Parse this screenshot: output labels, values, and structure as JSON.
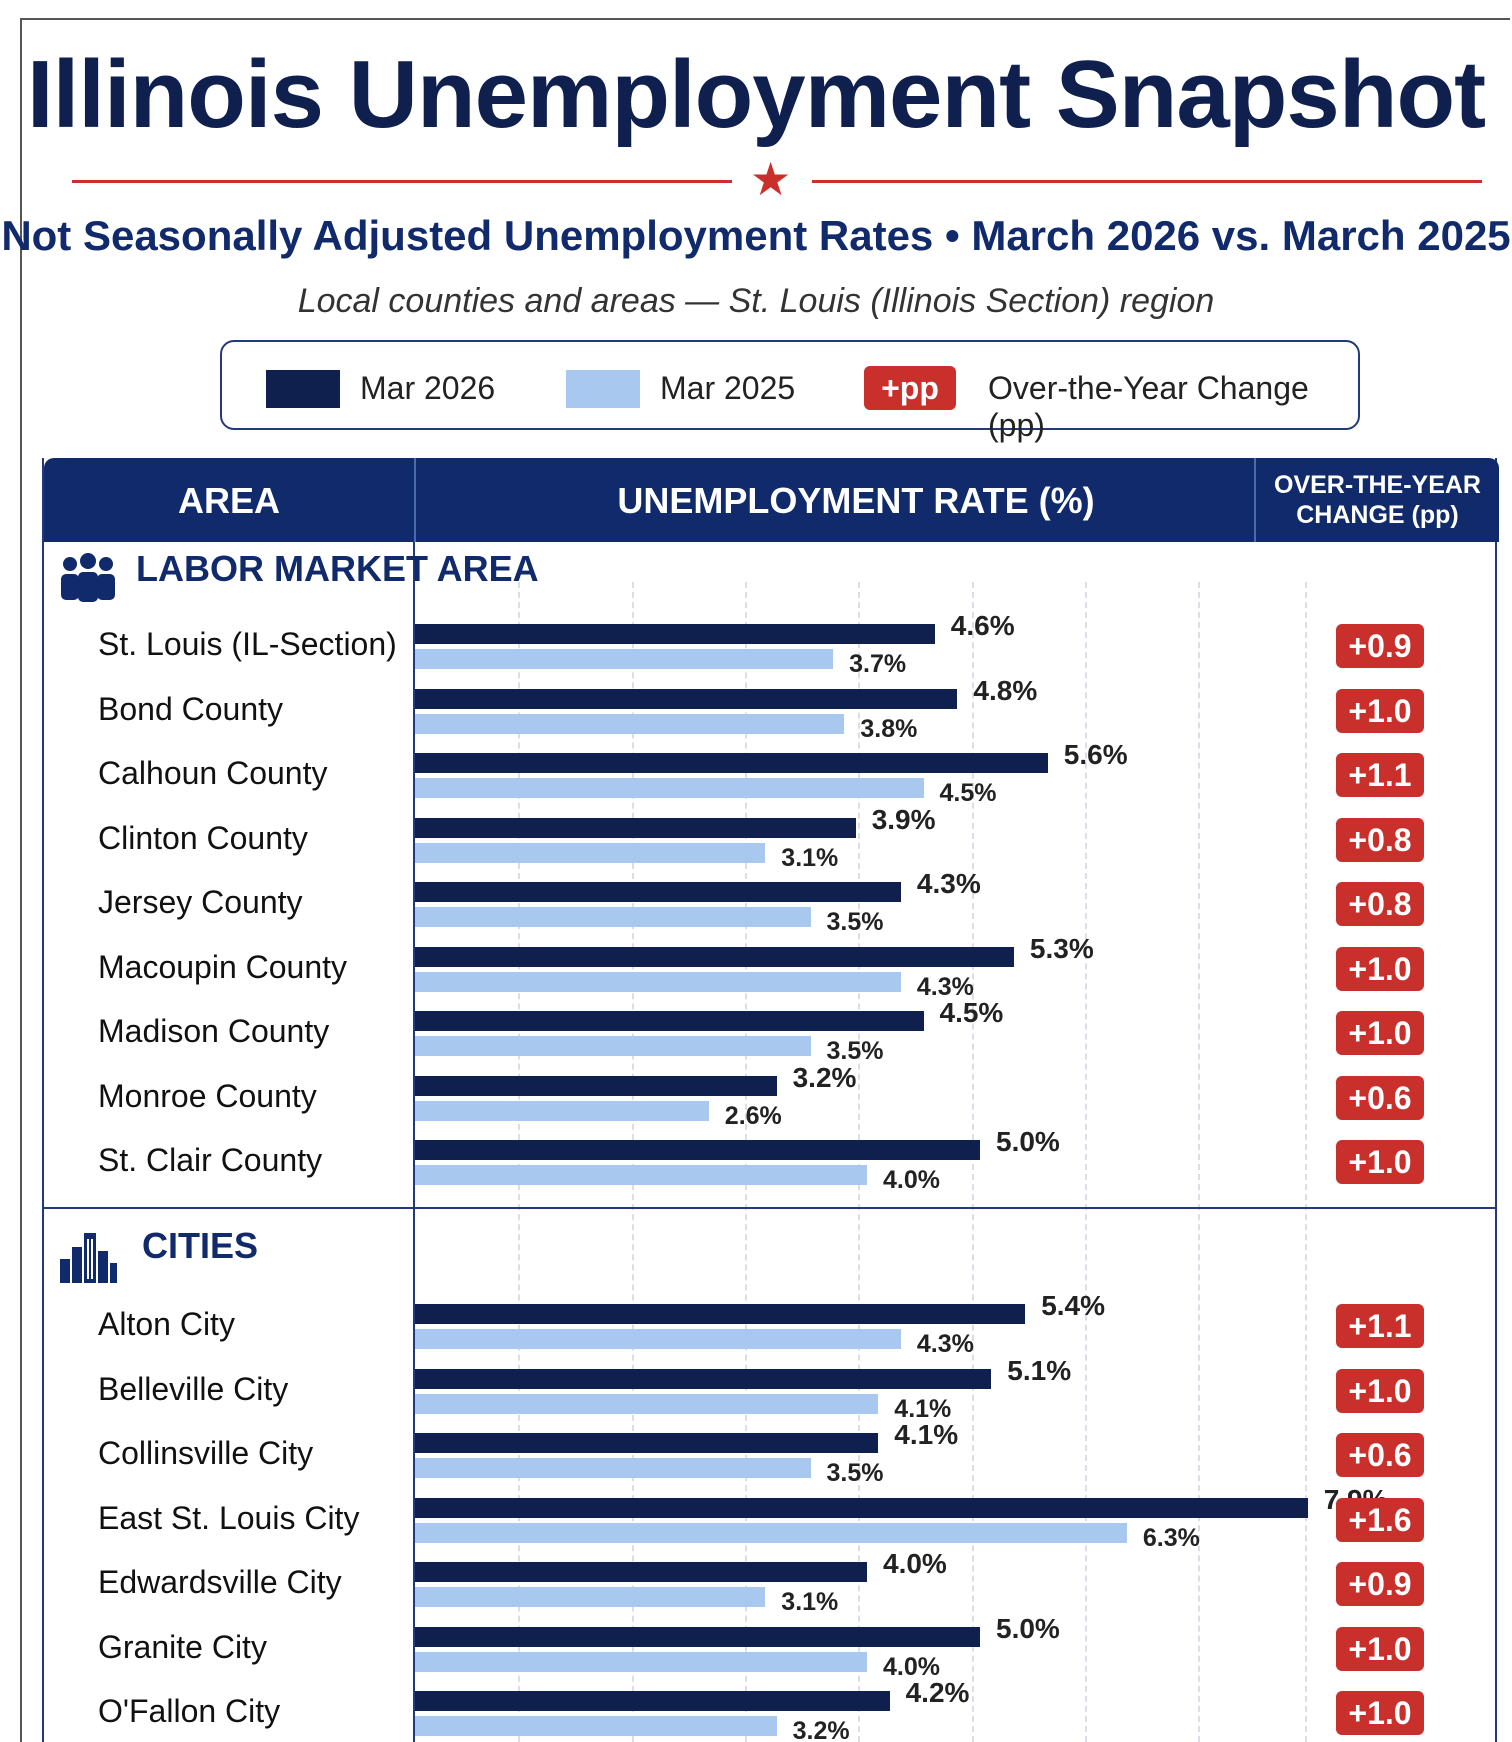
{
  "header": {
    "title": "Illinois Unemployment Snapshot",
    "subtitle": "Not Seasonally Adjusted Unemployment Rates • March 2026 vs. March 2025",
    "subheading": "Local counties and areas — St. Louis (Illinois Section) region"
  },
  "legend": {
    "current_label": "Mar 2026",
    "previous_label": "Mar 2025",
    "change_badge": "+pp",
    "change_label": "Over-the-Year Change (pp)"
  },
  "table": {
    "col_area": "AREA",
    "col_rate": "UNEMPLOYMENT RATE (%)",
    "col_change": "OVER-THE-YEAR CHANGE (pp)"
  },
  "colors": {
    "current": "#0f1f4e",
    "previous": "#a9c8f0",
    "change": "#c9302c",
    "header": "#102a6b"
  },
  "icons": [
    "people-group-icon",
    "city-buildings-icon",
    "star-icon"
  ],
  "chart_data": {
    "type": "bar",
    "orientation": "horizontal",
    "grid": true,
    "sections": [
      {
        "name": "LABOR MARKET AREA",
        "rows": [
          {
            "area": "St. Louis (IL-Section)",
            "mar2026": 4.6,
            "mar2025": 3.7,
            "mar2026_label": "4.6%",
            "mar2025_label": "3.7%",
            "change": "+0.9"
          },
          {
            "area": "Bond County",
            "mar2026": 4.8,
            "mar2025": 3.8,
            "mar2026_label": "4.8%",
            "mar2025_label": "3.8%",
            "change": "+1.0"
          },
          {
            "area": "Calhoun County",
            "mar2026": 5.6,
            "mar2025": 4.5,
            "mar2026_label": "5.6%",
            "mar2025_label": "4.5%",
            "change": "+1.1"
          },
          {
            "area": "Clinton County",
            "mar2026": 3.9,
            "mar2025": 3.1,
            "mar2026_label": "3.9%",
            "mar2025_label": "3.1%",
            "change": "+0.8"
          },
          {
            "area": "Jersey County",
            "mar2026": 4.3,
            "mar2025": 3.5,
            "mar2026_label": "4.3%",
            "mar2025_label": "3.5%",
            "change": "+0.8"
          },
          {
            "area": "Macoupin County",
            "mar2026": 5.3,
            "mar2025": 4.3,
            "mar2026_label": "5.3%",
            "mar2025_label": "4.3%",
            "change": "+1.0"
          },
          {
            "area": "Madison County",
            "mar2026": 4.5,
            "mar2025": 3.5,
            "mar2026_label": "4.5%",
            "mar2025_label": "3.5%",
            "change": "+1.0"
          },
          {
            "area": "Monroe County",
            "mar2026": 3.2,
            "mar2025": 2.6,
            "mar2026_label": "3.2%",
            "mar2025_label": "2.6%",
            "change": "+0.6"
          },
          {
            "area": "St. Clair County",
            "mar2026": 5.0,
            "mar2025": 4.0,
            "mar2026_label": "5.0%",
            "mar2025_label": "4.0%",
            "change": "+1.0"
          }
        ]
      },
      {
        "name": "CITIES",
        "rows": [
          {
            "area": "Alton City",
            "mar2026": 5.4,
            "mar2025": 4.3,
            "mar2026_label": "5.4%",
            "mar2025_label": "4.3%",
            "change": "+1.1"
          },
          {
            "area": "Belleville City",
            "mar2026": 5.1,
            "mar2025": 4.1,
            "mar2026_label": "5.1%",
            "mar2025_label": "4.1%",
            "change": "+1.0"
          },
          {
            "area": "Collinsville City",
            "mar2026": 4.1,
            "mar2025": 3.5,
            "mar2026_label": "4.1%",
            "mar2025_label": "3.5%",
            "change": "+0.6"
          },
          {
            "area": "East St. Louis City",
            "mar2026": 7.9,
            "mar2025": 6.3,
            "mar2026_label": "7.9%",
            "mar2025_label": "6.3%",
            "change": "+1.6"
          },
          {
            "area": "Edwardsville City",
            "mar2026": 4.0,
            "mar2025": 3.1,
            "mar2026_label": "4.0%",
            "mar2025_label": "3.1%",
            "change": "+0.9"
          },
          {
            "area": "Granite City",
            "mar2026": 5.0,
            "mar2025": 4.0,
            "mar2026_label": "5.0%",
            "mar2025_label": "4.0%",
            "change": "+1.0"
          },
          {
            "area": "O'Fallon City",
            "mar2026": 4.2,
            "mar2025": 3.2,
            "mar2026_label": "4.2%",
            "mar2025_label": "3.2%",
            "change": "+1.0"
          }
        ]
      }
    ]
  }
}
